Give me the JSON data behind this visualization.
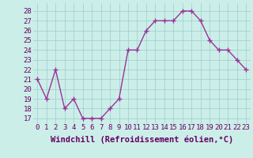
{
  "x": [
    0,
    1,
    2,
    3,
    4,
    5,
    6,
    7,
    8,
    9,
    10,
    11,
    12,
    13,
    14,
    15,
    16,
    17,
    18,
    19,
    20,
    21,
    22,
    23
  ],
  "y": [
    21,
    19,
    22,
    18,
    19,
    17,
    17,
    17,
    18,
    19,
    24,
    24,
    26,
    27,
    27,
    27,
    28,
    28,
    27,
    25,
    24,
    24,
    23,
    22
  ],
  "line_color": "#993399",
  "marker": "+",
  "marker_size": 4,
  "marker_lw": 1.0,
  "line_width": 1.0,
  "background_color": "#cceee8",
  "grid_color": "#99cccc",
  "xlabel": "Windchill (Refroidissement éolien,°C)",
  "xlabel_color": "#660066",
  "xlabel_fontsize": 7.5,
  "tick_color": "#660066",
  "ylim_min": 16.5,
  "ylim_max": 28.8,
  "yticks": [
    17,
    18,
    19,
    20,
    21,
    22,
    23,
    24,
    25,
    26,
    27,
    28
  ],
  "xticks": [
    0,
    1,
    2,
    3,
    4,
    5,
    6,
    7,
    8,
    9,
    10,
    11,
    12,
    13,
    14,
    15,
    16,
    17,
    18,
    19,
    20,
    21,
    22,
    23
  ],
  "tick_fontsize": 6.5,
  "grid_linewidth": 0.5
}
